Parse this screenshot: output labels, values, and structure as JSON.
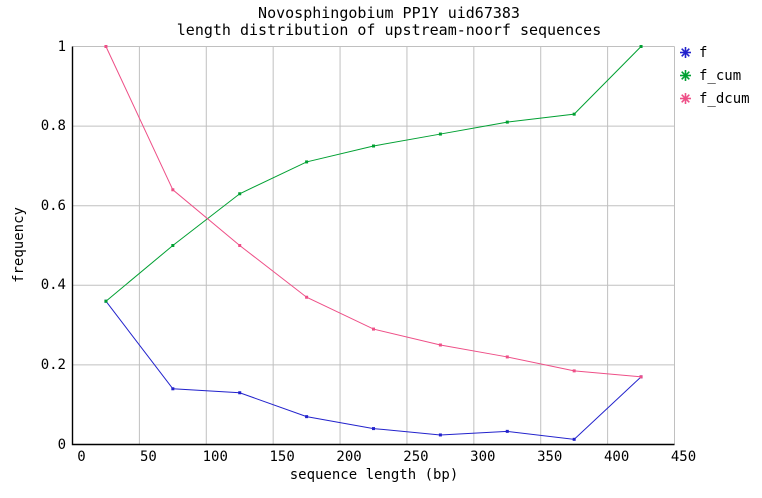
{
  "chart_data": {
    "type": "line",
    "title": "Novosphingobium PP1Y uid67383",
    "subtitle": "length distribution of upstream-noorf sequences",
    "xlabel": "sequence length (bp)",
    "ylabel": "frequency",
    "xlim": [
      0,
      450
    ],
    "ylim": [
      0,
      1
    ],
    "x_ticks": [
      0,
      50,
      100,
      150,
      200,
      250,
      300,
      350,
      400,
      450
    ],
    "y_ticks": [
      0,
      0.2,
      0.4,
      0.6,
      0.8,
      1
    ],
    "y_tick_labels": [
      "0",
      "0.2",
      "0.4",
      "0.6",
      "0.8",
      "1"
    ],
    "grid": true,
    "legend_position": "outside-top-right",
    "marker": "square-point",
    "legend_marker_icon": "asterisk-star-icon",
    "colors": {
      "grid": "#c0c0c0",
      "border": "#000000",
      "background": "#ffffff",
      "text": "#000000"
    },
    "x": [
      25,
      75,
      125,
      175,
      225,
      275,
      325,
      375,
      425
    ],
    "series": [
      {
        "name": "f",
        "color": "#2222cc",
        "values": [
          0.36,
          0.14,
          0.13,
          0.07,
          0.04,
          0.024,
          0.033,
          0.013,
          0.17
        ]
      },
      {
        "name": "f_cum",
        "color": "#00a032",
        "values": [
          0.36,
          0.5,
          0.63,
          0.71,
          0.75,
          0.78,
          0.81,
          0.83,
          1.0
        ]
      },
      {
        "name": "f_dcum",
        "color": "#ee4f87",
        "values": [
          1.0,
          0.64,
          0.5,
          0.37,
          0.29,
          0.25,
          0.22,
          0.185,
          0.17
        ]
      }
    ]
  }
}
